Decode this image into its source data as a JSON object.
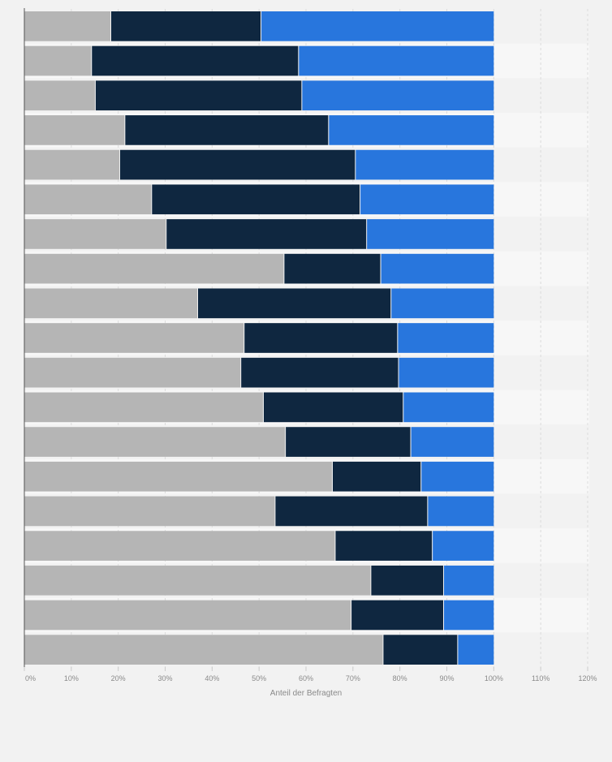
{
  "chart_data": {
    "type": "bar",
    "orientation": "horizontal",
    "stacked": true,
    "title": "",
    "xlabel": "Anteil der Befragten",
    "ylabel": "",
    "xlim": [
      0,
      120
    ],
    "x_ticks": [
      "0%",
      "10%",
      "20%",
      "30%",
      "40%",
      "50%",
      "60%",
      "70%",
      "80%",
      "90%",
      "100%",
      "110%",
      "120%"
    ],
    "grid": true,
    "legend": "none",
    "colors": [
      "#b5b5b5",
      "#0f2740",
      "#2876dd"
    ],
    "series": [
      {
        "values": [
          18.5,
          14.4,
          15.2,
          21.5,
          20.4,
          27.2,
          30.3,
          55.4,
          37.0,
          46.9,
          46.2,
          51.0,
          55.7,
          65.7,
          53.5,
          66.3,
          73.9,
          69.7,
          76.5
        ]
      },
      {
        "values": [
          32.0,
          44.1,
          44.0,
          43.4,
          50.2,
          44.4,
          42.7,
          20.6,
          41.2,
          32.7,
          33.6,
          29.8,
          26.7,
          18.9,
          32.5,
          20.7,
          15.5,
          19.7,
          15.9
        ]
      },
      {
        "values": [
          49.5,
          41.5,
          40.8,
          35.1,
          29.4,
          28.4,
          27.0,
          24.0,
          21.8,
          20.4,
          20.2,
          19.2,
          17.6,
          15.4,
          14.0,
          13.0,
          10.6,
          10.6,
          7.6
        ]
      }
    ]
  }
}
